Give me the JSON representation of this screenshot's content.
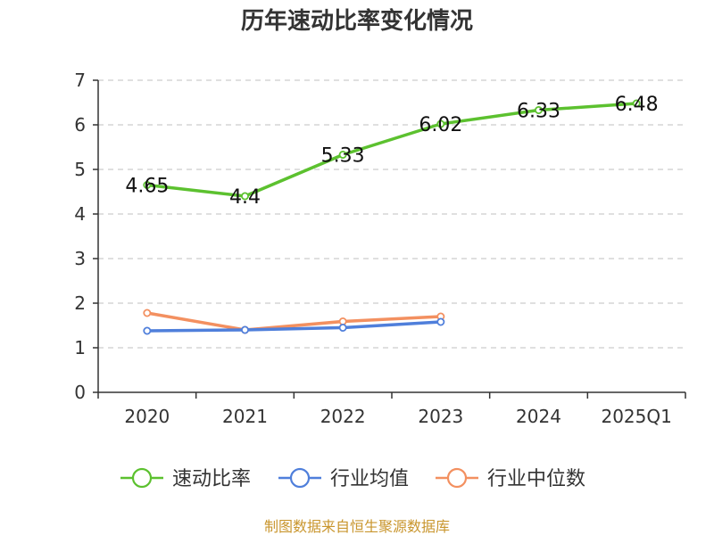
{
  "chart_data": {
    "type": "line",
    "title": "历年速动比率变化情况",
    "categories": [
      "2020",
      "2021",
      "2022",
      "2023",
      "2024",
      "2025Q1"
    ],
    "ylim": [
      0,
      7
    ],
    "yticks": [
      "0",
      "1",
      "2",
      "3",
      "4",
      "5",
      "6",
      "7"
    ],
    "grid": true,
    "legend_position": "bottom",
    "series": [
      {
        "name": "速动比率",
        "color": "#5cc12f",
        "values": [
          4.65,
          4.4,
          5.33,
          6.02,
          6.33,
          6.48
        ],
        "labels": [
          "4.65",
          "4.4",
          "5.33",
          "6.02",
          "6.33",
          "6.48"
        ],
        "show_labels": true
      },
      {
        "name": "行业均值",
        "color": "#4f7fdb",
        "values": [
          1.38,
          1.4,
          1.45,
          1.58,
          null,
          null
        ],
        "show_labels": false
      },
      {
        "name": "行业中位数",
        "color": "#f39060",
        "values": [
          1.78,
          1.4,
          1.59,
          1.7,
          null,
          null
        ],
        "show_labels": false
      }
    ],
    "source": "制图数据来自恒生聚源数据库"
  }
}
